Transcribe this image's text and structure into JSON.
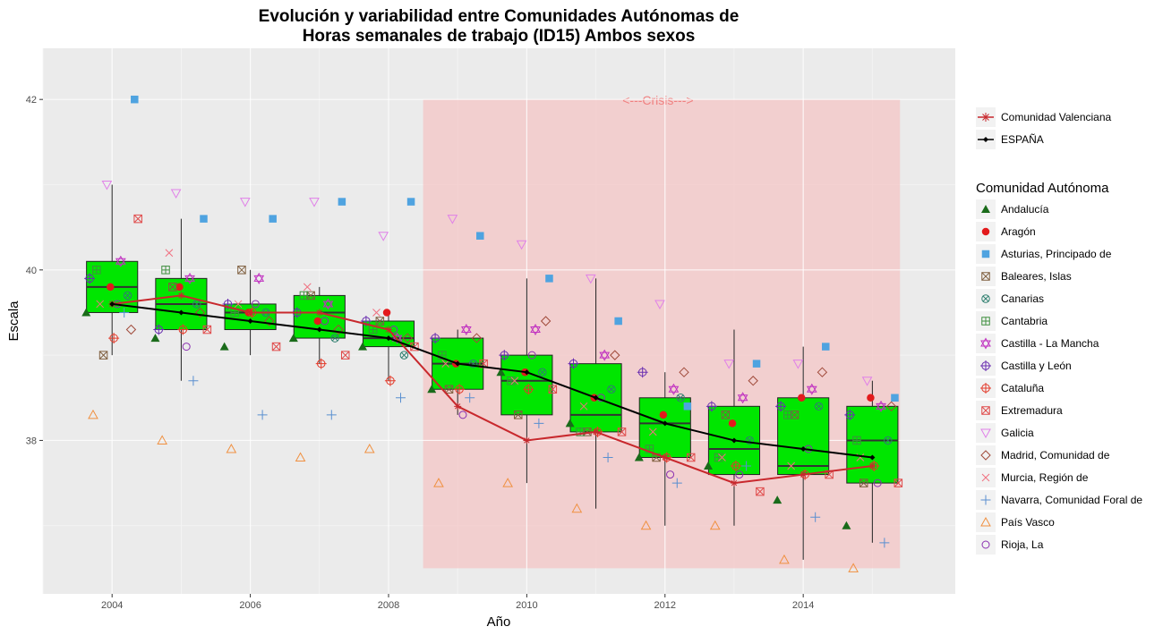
{
  "chart_data": {
    "type": "boxplot",
    "title_line1": "Evolución y variabilidad entre Comunidades Autónomas de",
    "title_line2": "Horas semanales de trabajo (ID15) Ambos sexos",
    "xlabel": "Año",
    "ylabel": "Escala",
    "xlim": [
      2003.0,
      2016.2
    ],
    "ylim": [
      36.2,
      42.6
    ],
    "x_ticks": [
      2004,
      2006,
      2008,
      2010,
      2012,
      2014
    ],
    "y_ticks": [
      38,
      40,
      42
    ],
    "grid": true,
    "colors": {
      "panel": "#ebebeb",
      "grid_major": "#ffffff",
      "box_fill": "#00e600",
      "crisis_fill": "#f4c6c6",
      "espana": "#000000",
      "valenciana": "#c8282d"
    },
    "crisis": {
      "label": "<---Crisis--->",
      "x_start": 2008.5,
      "x_end": 2015.4,
      "y_bottom": 36.5,
      "y_top": 42.0
    },
    "boxes": [
      {
        "year": 2004,
        "q1": 39.5,
        "median": 39.8,
        "q3": 40.1,
        "whisker_low": 39.0,
        "whisker_high": 41.0
      },
      {
        "year": 2005,
        "q1": 39.3,
        "median": 39.6,
        "q3": 39.9,
        "whisker_low": 38.7,
        "whisker_high": 40.6
      },
      {
        "year": 2006,
        "q1": 39.3,
        "median": 39.5,
        "q3": 39.6,
        "whisker_low": 39.0,
        "whisker_high": 40.0
      },
      {
        "year": 2007,
        "q1": 39.2,
        "median": 39.5,
        "q3": 39.7,
        "whisker_low": 38.9,
        "whisker_high": 39.8
      },
      {
        "year": 2008,
        "q1": 39.1,
        "median": 39.2,
        "q3": 39.4,
        "whisker_low": 38.7,
        "whisker_high": 39.5
      },
      {
        "year": 2009,
        "q1": 38.6,
        "median": 38.9,
        "q3": 39.2,
        "whisker_low": 38.3,
        "whisker_high": 39.3
      },
      {
        "year": 2010,
        "q1": 38.3,
        "median": 38.7,
        "q3": 39.0,
        "whisker_low": 37.5,
        "whisker_high": 39.9
      },
      {
        "year": 2011,
        "q1": 38.1,
        "median": 38.3,
        "q3": 38.9,
        "whisker_low": 37.2,
        "whisker_high": 39.9
      },
      {
        "year": 2012,
        "q1": 37.8,
        "median": 38.2,
        "q3": 38.5,
        "whisker_low": 37.0,
        "whisker_high": 38.8
      },
      {
        "year": 2013,
        "q1": 37.6,
        "median": 37.9,
        "q3": 38.4,
        "whisker_low": 37.0,
        "whisker_high": 39.3
      },
      {
        "year": 2014,
        "q1": 37.6,
        "median": 37.7,
        "q3": 38.5,
        "whisker_low": 36.6,
        "whisker_high": 39.1
      },
      {
        "year": 2015,
        "q1": 37.5,
        "median": 38.0,
        "q3": 38.4,
        "whisker_low": 36.8,
        "whisker_high": 38.7
      }
    ],
    "espana": {
      "name": "ESPAÑA",
      "years": [
        2004,
        2005,
        2006,
        2007,
        2008,
        2009,
        2010,
        2011,
        2012,
        2013,
        2014,
        2015
      ],
      "values": [
        39.6,
        39.5,
        39.4,
        39.3,
        39.2,
        38.9,
        38.8,
        38.5,
        38.2,
        38.0,
        37.9,
        37.8
      ]
    },
    "valenciana": {
      "name": "Comunidad Valenciana",
      "years": [
        2004,
        2005,
        2006,
        2007,
        2008,
        2009,
        2010,
        2011,
        2012,
        2013,
        2014,
        2015
      ],
      "values": [
        39.6,
        39.7,
        39.5,
        39.5,
        39.3,
        38.4,
        38.0,
        38.1,
        37.8,
        37.5,
        37.6,
        37.7
      ]
    },
    "legend": {
      "top_items": [
        {
          "label": "Comunidad Valenciana",
          "shape": "asterisk",
          "color": "#c8282d",
          "line": true
        },
        {
          "label": "ESPAÑA",
          "shape": "diamond",
          "color": "#000000",
          "line": true
        }
      ],
      "title": "Comunidad Autónoma",
      "items": [
        {
          "label": "Andalucía",
          "shape": "triangle",
          "color": "#1a6b1a"
        },
        {
          "label": "Aragón",
          "shape": "circle",
          "color": "#e31a1c"
        },
        {
          "label": "Asturias, Principado de",
          "shape": "square",
          "color": "#4fa3e0"
        },
        {
          "label": "Baleares, Islas",
          "shape": "square-x",
          "color": "#7f5f3f"
        },
        {
          "label": "Canarias",
          "shape": "circle-x",
          "color": "#2f7f6f"
        },
        {
          "label": "Cantabria",
          "shape": "square-plus",
          "color": "#3f8f3f"
        },
        {
          "label": "Castilla - La Mancha",
          "shape": "star-of-david",
          "color": "#c030c0"
        },
        {
          "label": "Castilla y León",
          "shape": "circle-plus",
          "color": "#6a2fb0"
        },
        {
          "label": "Cataluña",
          "shape": "circle-plus",
          "color": "#e33a2a"
        },
        {
          "label": "Extremadura",
          "shape": "square-x",
          "color": "#e04a4a"
        },
        {
          "label": "Galicia",
          "shape": "triangle-down",
          "color": "#e080e8"
        },
        {
          "label": "Madrid, Comunidad de",
          "shape": "diamond-open",
          "color": "#a04a3a"
        },
        {
          "label": "Murcia, Región de",
          "shape": "x",
          "color": "#f07080"
        },
        {
          "label": "Navarra, Comunidad Foral de",
          "shape": "plus",
          "color": "#5a8fd0"
        },
        {
          "label": "País Vasco",
          "shape": "triangle-open",
          "color": "#f09040"
        },
        {
          "label": "Rioja, La",
          "shape": "circle-open",
          "color": "#8a2fb0"
        }
      ]
    },
    "points": {
      "Andalucía": [
        [
          2004,
          39.5
        ],
        [
          2005,
          39.2
        ],
        [
          2006,
          39.1
        ],
        [
          2007,
          39.2
        ],
        [
          2008,
          39.1
        ],
        [
          2009,
          38.6
        ],
        [
          2010,
          38.8
        ],
        [
          2011,
          38.2
        ],
        [
          2012,
          37.8
        ],
        [
          2013,
          37.7
        ],
        [
          2014,
          37.3
        ],
        [
          2015,
          37.0
        ]
      ],
      "Aragón": [
        [
          2004,
          39.8
        ],
        [
          2005,
          39.8
        ],
        [
          2006,
          39.5
        ],
        [
          2007,
          39.4
        ],
        [
          2008,
          39.5
        ],
        [
          2009,
          38.9
        ],
        [
          2010,
          38.8
        ],
        [
          2011,
          38.5
        ],
        [
          2012,
          38.3
        ],
        [
          2013,
          38.2
        ],
        [
          2014,
          38.5
        ],
        [
          2015,
          38.5
        ]
      ],
      "Asturias, Principado de": [
        [
          2004,
          42.0
        ],
        [
          2005,
          40.6
        ],
        [
          2006,
          40.6
        ],
        [
          2007,
          40.8
        ],
        [
          2008,
          40.8
        ],
        [
          2009,
          40.4
        ],
        [
          2010,
          39.9
        ],
        [
          2011,
          39.4
        ],
        [
          2012,
          38.4
        ],
        [
          2013,
          38.9
        ],
        [
          2014,
          39.1
        ],
        [
          2015,
          38.5
        ]
      ],
      "Baleares, Islas": [
        [
          2004,
          39.0
        ],
        [
          2005,
          39.8
        ],
        [
          2006,
          40.0
        ],
        [
          2007,
          39.7
        ],
        [
          2008,
          39.4
        ],
        [
          2009,
          38.6
        ],
        [
          2010,
          38.3
        ],
        [
          2011,
          38.1
        ],
        [
          2012,
          37.8
        ],
        [
          2013,
          38.3
        ],
        [
          2014,
          38.3
        ],
        [
          2015,
          37.5
        ]
      ],
      "Canarias": [
        [
          2004,
          39.7
        ],
        [
          2005,
          39.6
        ],
        [
          2006,
          39.5
        ],
        [
          2007,
          39.2
        ],
        [
          2008,
          39.0
        ],
        [
          2009,
          38.9
        ],
        [
          2010,
          38.8
        ],
        [
          2011,
          38.6
        ],
        [
          2012,
          38.5
        ],
        [
          2013,
          38.0
        ],
        [
          2014,
          38.4
        ],
        [
          2015,
          38.0
        ]
      ],
      "Cantabria": [
        [
          2004,
          40.0
        ],
        [
          2005,
          40.0
        ],
        [
          2006,
          39.5
        ],
        [
          2007,
          39.7
        ],
        [
          2008,
          39.3
        ],
        [
          2009,
          39.0
        ],
        [
          2010,
          38.7
        ],
        [
          2011,
          38.1
        ],
        [
          2012,
          37.9
        ],
        [
          2013,
          37.8
        ],
        [
          2014,
          38.3
        ],
        [
          2015,
          38.0
        ]
      ],
      "Castilla - La Mancha": [
        [
          2004,
          40.1
        ],
        [
          2005,
          39.9
        ],
        [
          2006,
          39.9
        ],
        [
          2007,
          39.6
        ],
        [
          2008,
          39.2
        ],
        [
          2009,
          39.3
        ],
        [
          2010,
          39.3
        ],
        [
          2011,
          39.0
        ],
        [
          2012,
          38.6
        ],
        [
          2013,
          38.5
        ],
        [
          2014,
          38.6
        ],
        [
          2015,
          38.4
        ]
      ],
      "Castilla y León": [
        [
          2004,
          39.9
        ],
        [
          2005,
          39.3
        ],
        [
          2006,
          39.6
        ],
        [
          2007,
          39.5
        ],
        [
          2008,
          39.4
        ],
        [
          2009,
          39.2
        ],
        [
          2010,
          39.0
        ],
        [
          2011,
          38.9
        ],
        [
          2012,
          38.8
        ],
        [
          2013,
          38.4
        ],
        [
          2014,
          38.4
        ],
        [
          2015,
          38.3
        ]
      ],
      "Cataluña": [
        [
          2004,
          39.2
        ],
        [
          2005,
          39.3
        ],
        [
          2006,
          39.5
        ],
        [
          2007,
          38.9
        ],
        [
          2008,
          38.7
        ],
        [
          2009,
          38.6
        ],
        [
          2010,
          38.6
        ],
        [
          2011,
          38.1
        ],
        [
          2012,
          37.8
        ],
        [
          2013,
          37.7
        ],
        [
          2014,
          37.6
        ],
        [
          2015,
          37.7
        ]
      ],
      "Extremadura": [
        [
          2004,
          40.6
        ],
        [
          2005,
          39.3
        ],
        [
          2006,
          39.1
        ],
        [
          2007,
          39.0
        ],
        [
          2008,
          39.1
        ],
        [
          2009,
          38.9
        ],
        [
          2010,
          38.6
        ],
        [
          2011,
          38.1
        ],
        [
          2012,
          37.8
        ],
        [
          2013,
          37.4
        ],
        [
          2014,
          37.6
        ],
        [
          2015,
          37.5
        ]
      ],
      "Galicia": [
        [
          2004,
          41.0
        ],
        [
          2005,
          40.9
        ],
        [
          2006,
          40.8
        ],
        [
          2007,
          40.8
        ],
        [
          2008,
          40.4
        ],
        [
          2009,
          40.6
        ],
        [
          2010,
          40.3
        ],
        [
          2011,
          39.9
        ],
        [
          2012,
          39.6
        ],
        [
          2013,
          38.9
        ],
        [
          2014,
          38.9
        ],
        [
          2015,
          38.7
        ]
      ],
      "Madrid, Comunidad de": [
        [
          2004,
          39.3
        ],
        [
          2005,
          39.5
        ],
        [
          2006,
          39.4
        ],
        [
          2007,
          39.3
        ],
        [
          2008,
          39.2
        ],
        [
          2009,
          39.2
        ],
        [
          2010,
          39.4
        ],
        [
          2011,
          39.0
        ],
        [
          2012,
          38.8
        ],
        [
          2013,
          38.7
        ],
        [
          2014,
          38.8
        ],
        [
          2015,
          38.4
        ]
      ],
      "Murcia, Región de": [
        [
          2004,
          39.6
        ],
        [
          2005,
          40.2
        ],
        [
          2006,
          39.6
        ],
        [
          2007,
          39.8
        ],
        [
          2008,
          39.5
        ],
        [
          2009,
          38.9
        ],
        [
          2010,
          38.7
        ],
        [
          2011,
          38.4
        ],
        [
          2012,
          38.1
        ],
        [
          2013,
          37.8
        ],
        [
          2014,
          37.7
        ],
        [
          2015,
          37.8
        ]
      ],
      "Navarra, Comunidad Foral de": [
        [
          2004,
          39.5
        ],
        [
          2005,
          38.7
        ],
        [
          2006,
          38.3
        ],
        [
          2007,
          38.3
        ],
        [
          2008,
          38.5
        ],
        [
          2009,
          38.5
        ],
        [
          2010,
          38.2
        ],
        [
          2011,
          37.8
        ],
        [
          2012,
          37.5
        ],
        [
          2013,
          37.7
        ],
        [
          2014,
          37.1
        ],
        [
          2015,
          36.8
        ]
      ],
      "País Vasco": [
        [
          2004,
          38.3
        ],
        [
          2005,
          38.0
        ],
        [
          2006,
          37.9
        ],
        [
          2007,
          37.8
        ],
        [
          2008,
          37.9
        ],
        [
          2009,
          37.5
        ],
        [
          2010,
          37.5
        ],
        [
          2011,
          37.2
        ],
        [
          2012,
          37.0
        ],
        [
          2013,
          37.0
        ],
        [
          2014,
          36.6
        ],
        [
          2015,
          36.5
        ]
      ],
      "Rioja, La": [
        [
          2004,
          39.6
        ],
        [
          2005,
          39.1
        ],
        [
          2006,
          39.6
        ],
        [
          2007,
          39.4
        ],
        [
          2008,
          39.3
        ],
        [
          2009,
          38.3
        ],
        [
          2010,
          39.0
        ],
        [
          2011,
          38.5
        ],
        [
          2012,
          37.6
        ],
        [
          2013,
          37.6
        ],
        [
          2014,
          37.9
        ],
        [
          2015,
          37.5
        ]
      ]
    }
  }
}
